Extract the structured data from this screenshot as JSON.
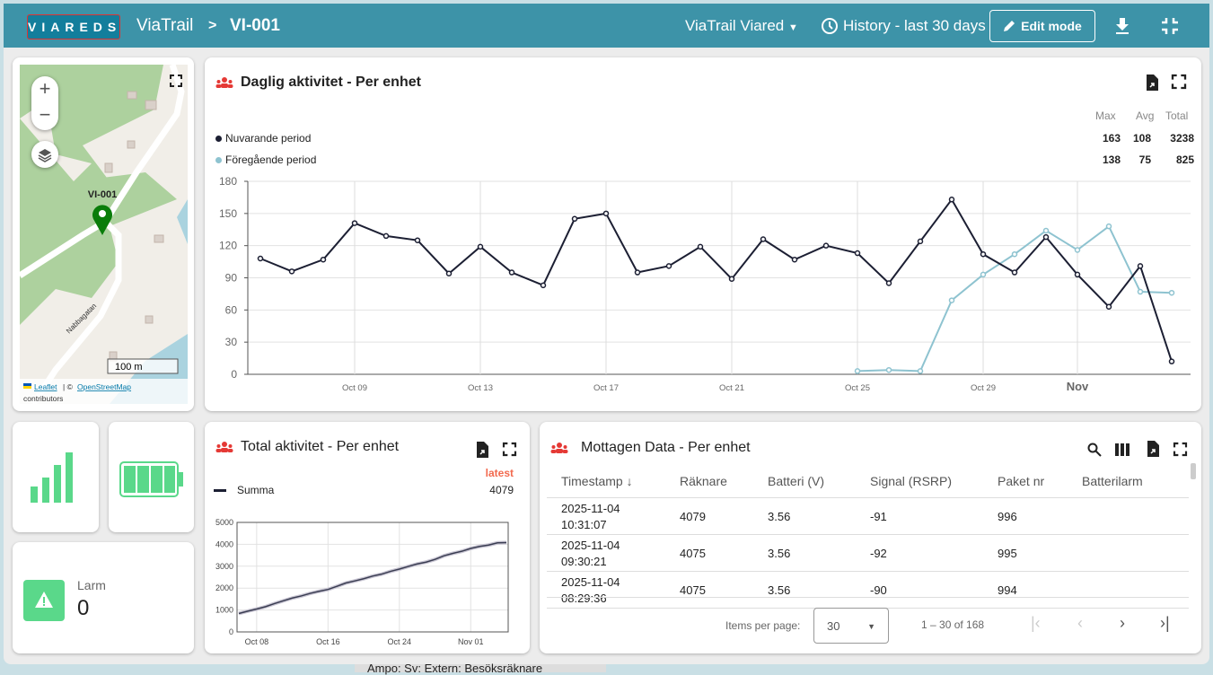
{
  "header": {
    "logo": "VIAREDS",
    "breadcrumb_root": "ViaTrail",
    "separator": ">",
    "device": "VI-001",
    "org_select": "ViaTrail Viared",
    "history": "History - last 30 days",
    "edit_mode": "Edit mode"
  },
  "map": {
    "marker_label": "VI-001",
    "street": "Nabbagatan",
    "scale": "100 m",
    "attrib_leaflet": "Leaflet",
    "attrib_sep": "| ©",
    "attrib_osm": "OpenStreetMap",
    "attrib_contrib": "contributors",
    "zoom_in": "+",
    "zoom_out": "−"
  },
  "daily": {
    "title": "Daglig aktivitet - Per enhet",
    "stat_headers": [
      "Max",
      "Avg",
      "Total"
    ],
    "legend": [
      {
        "name": "Nuvarande period",
        "max": "163",
        "avg": "108",
        "total": "3238",
        "color": "#1c1f33"
      },
      {
        "name": "Föregående period",
        "max": "138",
        "avg": "75",
        "total": "825",
        "color": "#8ec3d0"
      }
    ]
  },
  "total": {
    "title": "Total aktivitet - Per enhet",
    "latest_label": "latest",
    "legend_name": "Summa",
    "legend_value": "4079"
  },
  "status": {
    "larm_label": "Larm",
    "larm_value": "0",
    "signal_level": 4,
    "battery_level": 1.0
  },
  "table": {
    "title": "Mottagen Data - Per enhet",
    "columns": [
      "Timestamp",
      "Räknare",
      "Batteri (V)",
      "Signal (RSRP)",
      "Paket nr",
      "Batterilarm"
    ],
    "rows": [
      {
        "date": "2025-11-04",
        "time": "10:31:07",
        "count": "4079",
        "battery": "3.56",
        "signal": "-91",
        "packet": "996",
        "alarm": ""
      },
      {
        "date": "2025-11-04",
        "time": "09:30:21",
        "count": "4075",
        "battery": "3.56",
        "signal": "-92",
        "packet": "995",
        "alarm": ""
      },
      {
        "date": "2025-11-04",
        "time": "08:29:36",
        "count": "4075",
        "battery": "3.56",
        "signal": "-90",
        "packet": "994",
        "alarm": ""
      }
    ],
    "items_per_page_label": "Items per page:",
    "items_per_page": "30",
    "range": "1 – 30 of 168"
  },
  "footer_text": "Ampo: Sv: Extern: Besöksräknare",
  "chart_data": [
    {
      "type": "line",
      "title": "Daglig aktivitet - Per enhet",
      "x_start": "2025-10-06",
      "x_ticks": [
        "Oct 09",
        "Oct 13",
        "Oct 17",
        "Oct 21",
        "Oct 25",
        "Oct 29",
        "Nov"
      ],
      "y_ticks": [
        "0",
        "30",
        "60",
        "90",
        "120",
        "150",
        "180"
      ],
      "ylim": [
        0,
        180
      ],
      "series": [
        {
          "name": "Nuvarande period",
          "start_index": 0,
          "values": [
            108,
            96,
            107,
            141,
            129,
            125,
            94,
            119,
            95,
            83,
            145,
            150,
            95,
            101,
            119,
            89,
            126,
            107,
            120,
            113,
            85,
            124,
            163,
            112,
            95,
            128,
            93,
            63,
            101,
            12
          ]
        },
        {
          "name": "Föregående period",
          "start_index": 19,
          "values": [
            3,
            4,
            3,
            69,
            93,
            112,
            134,
            116,
            138,
            77,
            76
          ]
        }
      ]
    },
    {
      "type": "line",
      "title": "Total aktivitet - Per enhet",
      "x_ticks": [
        "Oct 08",
        "Oct 16",
        "Oct 24",
        "Nov 01"
      ],
      "y_ticks": [
        "0",
        "1000",
        "2000",
        "3000",
        "4000",
        "5000"
      ],
      "ylim": [
        0,
        5000
      ],
      "series": [
        {
          "name": "Summa",
          "values": [
            841,
            949,
            1045,
            1152,
            1293,
            1422,
            1547,
            1641,
            1760,
            1855,
            1938,
            2083,
            2233,
            2328,
            2429,
            2548,
            2637,
            2763,
            2870,
            2990,
            3103,
            3188,
            3312,
            3475,
            3587,
            3682,
            3810,
            3903,
            3966,
            4067,
            4079
          ]
        }
      ]
    }
  ]
}
